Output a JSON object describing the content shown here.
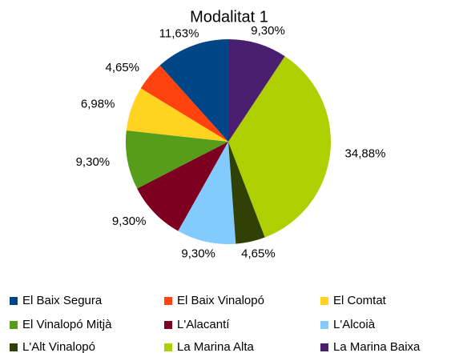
{
  "chart_data": {
    "type": "pie",
    "title": "Modalitat 1",
    "categories": [
      "El Baix Segura",
      "El Baix Vinalopó",
      "El Comtat",
      "El Vinalopó Mitjà",
      "L'Alacantí",
      "L'Alcoià",
      "L'Alt Vinalopó",
      "La Marina Alta",
      "La Marina Baixa"
    ],
    "values": [
      11.63,
      4.65,
      6.98,
      9.3,
      9.3,
      9.3,
      4.65,
      34.88,
      9.3
    ],
    "value_labels": [
      "11,63%",
      "4,65%",
      "6,98%",
      "9,30%",
      "9,30%",
      "9,30%",
      "4,65%",
      "34,88%",
      "9,30%"
    ],
    "colors": [
      "#004586",
      "#ff420e",
      "#ffd320",
      "#579d1c",
      "#7e0021",
      "#83caff",
      "#314004",
      "#aecf00",
      "#4b1f6f"
    ],
    "legend": "bottom"
  }
}
